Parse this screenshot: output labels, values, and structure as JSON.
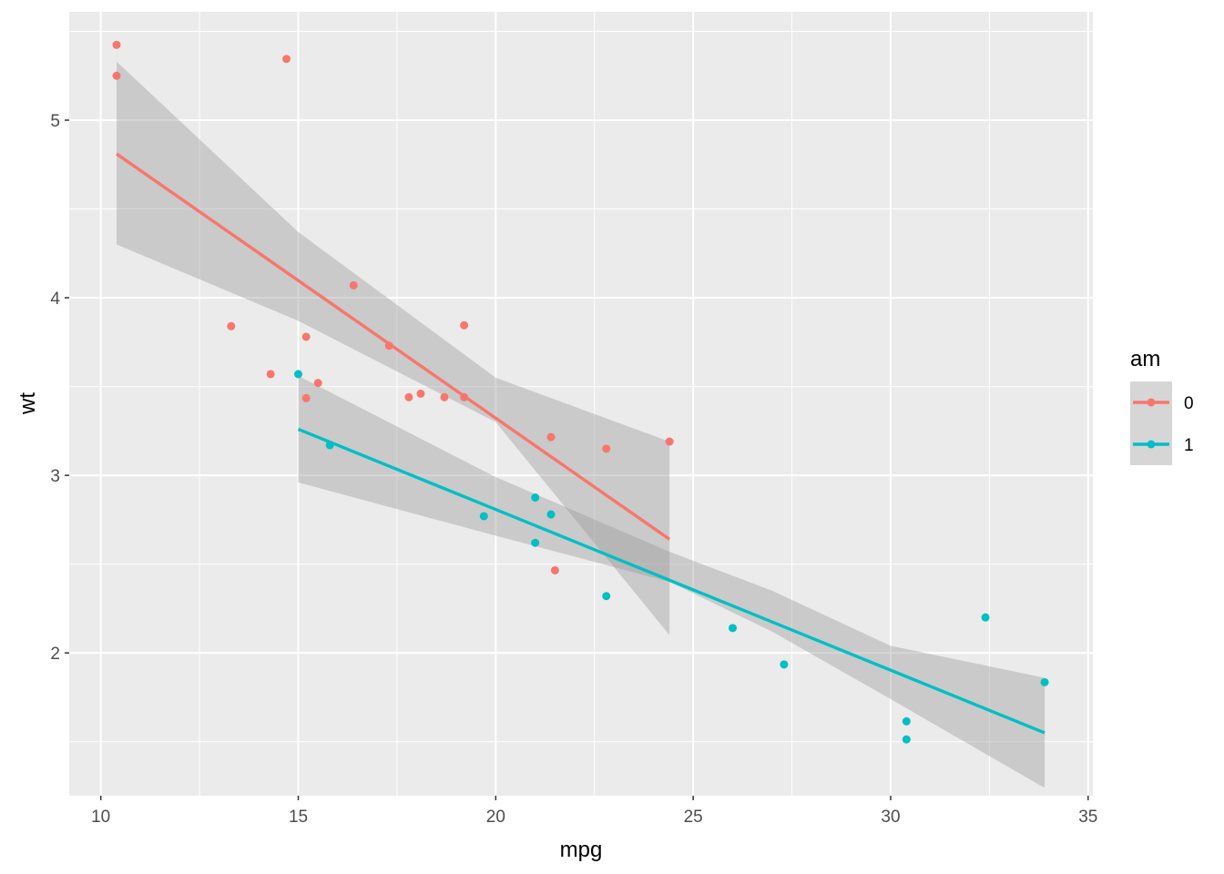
{
  "chart_data": {
    "type": "scatter",
    "xlabel": "mpg",
    "ylabel": "wt",
    "xlim": [
      9.2,
      35.12
    ],
    "ylim": [
      1.196,
      5.61
    ],
    "x_ticks": [
      10,
      15,
      20,
      25,
      30,
      35
    ],
    "y_ticks": [
      2,
      3,
      4,
      5
    ],
    "grid": true,
    "legend": {
      "title": "am",
      "placement": "right"
    },
    "series": [
      {
        "name": "0",
        "color": "#F8766D",
        "points": [
          [
            21.4,
            3.215
          ],
          [
            18.7,
            3.44
          ],
          [
            18.1,
            3.46
          ],
          [
            14.3,
            3.57
          ],
          [
            24.4,
            3.19
          ],
          [
            22.8,
            3.15
          ],
          [
            19.2,
            3.44
          ],
          [
            17.8,
            3.44
          ],
          [
            16.4,
            4.07
          ],
          [
            17.3,
            3.73
          ],
          [
            15.2,
            3.78
          ],
          [
            10.4,
            5.25
          ],
          [
            10.4,
            5.424
          ],
          [
            14.7,
            5.345
          ],
          [
            21.5,
            2.465
          ],
          [
            15.5,
            3.52
          ],
          [
            15.2,
            3.435
          ],
          [
            13.3,
            3.84
          ],
          [
            19.2,
            3.845
          ]
        ],
        "fit": {
          "x": [
            10.4,
            24.4
          ],
          "y": [
            4.81,
            2.64
          ]
        },
        "band": {
          "x": [
            10.4,
            15.0,
            20.0,
            24.4
          ],
          "lower": [
            4.3,
            3.87,
            3.3,
            2.1
          ],
          "upper": [
            5.33,
            4.37,
            3.55,
            3.19
          ]
        }
      },
      {
        "name": "1",
        "color": "#00BFC4",
        "points": [
          [
            21.0,
            2.62
          ],
          [
            21.0,
            2.875
          ],
          [
            22.8,
            2.32
          ],
          [
            32.4,
            2.2
          ],
          [
            30.4,
            1.615
          ],
          [
            33.9,
            1.835
          ],
          [
            27.3,
            1.935
          ],
          [
            26.0,
            2.14
          ],
          [
            30.4,
            1.513
          ],
          [
            15.8,
            3.17
          ],
          [
            19.7,
            2.77
          ],
          [
            15.0,
            3.57
          ],
          [
            21.4,
            2.78
          ]
        ],
        "fit": {
          "x": [
            15.0,
            33.9
          ],
          "y": [
            3.26,
            1.55
          ]
        },
        "band": {
          "x": [
            15.0,
            20.0,
            24.4,
            27.0,
            30.0,
            33.9
          ],
          "lower": [
            2.96,
            2.66,
            2.4,
            2.12,
            1.74,
            1.24
          ],
          "upper": [
            3.56,
            2.99,
            2.57,
            2.35,
            2.04,
            1.86
          ]
        }
      }
    ]
  }
}
